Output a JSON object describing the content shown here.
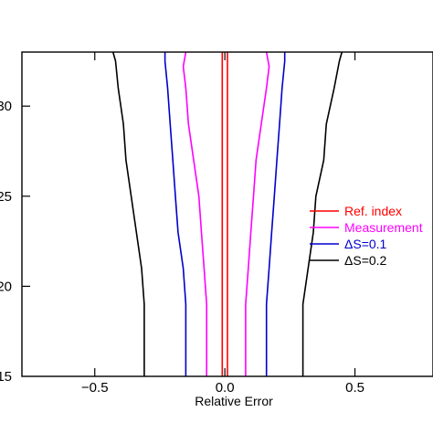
{
  "chart_data": {
    "type": "line",
    "title": "",
    "xlabel": "Relative Error",
    "ylabel": "",
    "xlim": [
      -0.78,
      0.8
    ],
    "ylim": [
      15,
      33
    ],
    "x_ticks": [
      -0.5,
      0.0,
      0.5
    ],
    "x_tick_labels": [
      "−0.5",
      "0.0",
      "0.5"
    ],
    "y_ticks": [
      20,
      25,
      30
    ],
    "y_tick_labels": [
      "20",
      "25",
      "30"
    ],
    "y_visible_tick_labels": [
      "15",
      "20",
      "25",
      "30"
    ],
    "legend_position": "right",
    "series": [
      {
        "name": "Ref. index",
        "color": "#ff0000",
        "lines": [
          {
            "side": "left",
            "points": [
              [
                -0.01,
                15
              ],
              [
                -0.01,
                33
              ]
            ]
          },
          {
            "side": "right",
            "points": [
              [
                0.01,
                15
              ],
              [
                0.01,
                33
              ]
            ]
          }
        ]
      },
      {
        "name": "Measurement",
        "color": "#ff00ff",
        "lines": [
          {
            "side": "left",
            "points": [
              [
                -0.07,
                15
              ],
              [
                -0.07,
                19
              ],
              [
                -0.08,
                21
              ],
              [
                -0.09,
                23
              ],
              [
                -0.1,
                25
              ],
              [
                -0.12,
                27
              ],
              [
                -0.14,
                29
              ],
              [
                -0.15,
                31
              ],
              [
                -0.16,
                32.2
              ],
              [
                -0.15,
                33
              ]
            ]
          },
          {
            "side": "right",
            "points": [
              [
                0.08,
                15
              ],
              [
                0.08,
                19
              ],
              [
                0.09,
                21
              ],
              [
                0.1,
                23
              ],
              [
                0.11,
                25
              ],
              [
                0.12,
                27
              ],
              [
                0.14,
                29
              ],
              [
                0.16,
                31
              ],
              [
                0.17,
                32.2
              ],
              [
                0.16,
                33
              ]
            ]
          }
        ]
      },
      {
        "name": "ΔS=0.1",
        "color": "#0000cc",
        "lines": [
          {
            "side": "left",
            "points": [
              [
                -0.15,
                15
              ],
              [
                -0.15,
                19
              ],
              [
                -0.16,
                21
              ],
              [
                -0.18,
                23
              ],
              [
                -0.19,
                25
              ],
              [
                -0.2,
                27
              ],
              [
                -0.21,
                29
              ],
              [
                -0.22,
                31
              ],
              [
                -0.23,
                32.5
              ],
              [
                -0.23,
                33
              ]
            ]
          },
          {
            "side": "right",
            "points": [
              [
                0.16,
                15
              ],
              [
                0.16,
                19
              ],
              [
                0.17,
                21
              ],
              [
                0.18,
                23
              ],
              [
                0.19,
                25
              ],
              [
                0.2,
                27
              ],
              [
                0.21,
                29
              ],
              [
                0.22,
                31
              ],
              [
                0.23,
                32.5
              ],
              [
                0.23,
                33
              ]
            ]
          }
        ]
      },
      {
        "name": "ΔS=0.2",
        "color": "#000000",
        "lines": [
          {
            "side": "left",
            "points": [
              [
                -0.31,
                15
              ],
              [
                -0.31,
                19
              ],
              [
                -0.32,
                21
              ],
              [
                -0.34,
                23
              ],
              [
                -0.36,
                25
              ],
              [
                -0.38,
                27
              ],
              [
                -0.39,
                29
              ],
              [
                -0.41,
                31
              ],
              [
                -0.42,
                32.5
              ],
              [
                -0.43,
                33
              ]
            ]
          },
          {
            "side": "right",
            "points": [
              [
                0.3,
                15
              ],
              [
                0.3,
                19
              ],
              [
                0.32,
                21
              ],
              [
                0.34,
                23
              ],
              [
                0.35,
                25
              ],
              [
                0.38,
                27
              ],
              [
                0.39,
                29
              ],
              [
                0.42,
                31
              ],
              [
                0.44,
                32.5
              ],
              [
                0.45,
                33
              ]
            ]
          }
        ]
      }
    ]
  }
}
